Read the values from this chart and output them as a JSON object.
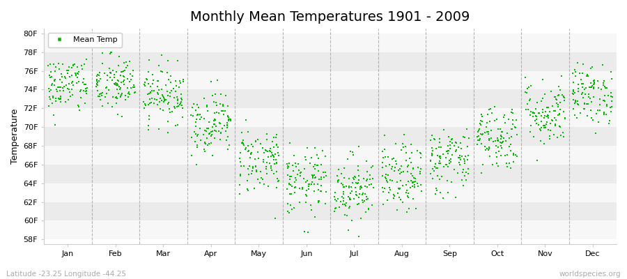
{
  "title": "Monthly Mean Temperatures 1901 - 2009",
  "ylabel": "Temperature",
  "ytick_labels": [
    "58F",
    "60F",
    "62F",
    "64F",
    "66F",
    "68F",
    "70F",
    "72F",
    "74F",
    "76F",
    "78F",
    "80F"
  ],
  "ytick_values": [
    58,
    60,
    62,
    64,
    66,
    68,
    70,
    72,
    74,
    76,
    78,
    80
  ],
  "ylim": [
    57.5,
    80.5
  ],
  "months": [
    "Jan",
    "Feb",
    "Mar",
    "Apr",
    "May",
    "Jun",
    "Jul",
    "Aug",
    "Sep",
    "Oct",
    "Nov",
    "Dec"
  ],
  "month_centers": [
    0.5,
    1.5,
    2.5,
    3.5,
    4.5,
    5.5,
    6.5,
    7.5,
    8.5,
    9.5,
    10.5,
    11.5
  ],
  "dot_color": "#00bb00",
  "bg_color": "#ffffff",
  "band_color_light": "#f7f7f7",
  "band_color_dark": "#ebebeb",
  "legend_label": "Mean Temp",
  "footer_left": "Latitude -23.25 Longitude -44.25",
  "footer_right": "worldspecies.org",
  "title_fontsize": 14,
  "axis_fontsize": 9,
  "tick_fontsize": 8,
  "footer_fontsize": 7.5,
  "monthly_mean_F": [
    74.5,
    74.5,
    73.5,
    70.5,
    66.5,
    64.0,
    63.5,
    64.5,
    66.5,
    69.0,
    71.5,
    73.5
  ],
  "monthly_std_F": [
    1.6,
    1.6,
    1.5,
    1.7,
    1.8,
    1.8,
    1.8,
    1.8,
    1.8,
    1.8,
    1.8,
    1.6
  ],
  "n_years": 109,
  "seed": 42,
  "xlim": [
    0,
    12
  ],
  "grid_color": "#888888",
  "dashed_line_positions": [
    1.0,
    2.0,
    3.0,
    4.0,
    5.0,
    6.0,
    7.0,
    8.0,
    9.0,
    10.0,
    11.0
  ]
}
